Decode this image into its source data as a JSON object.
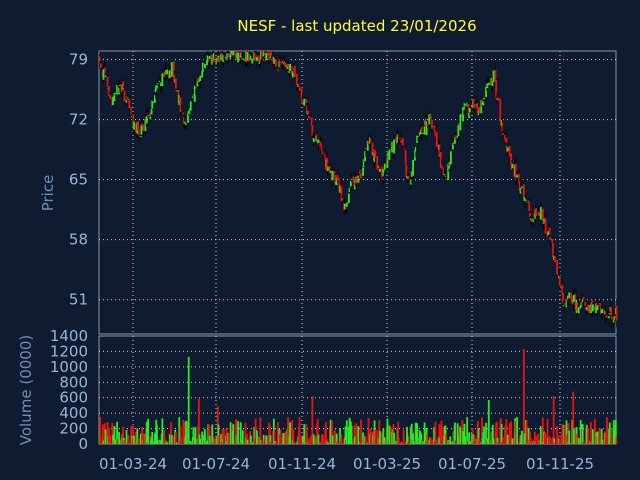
{
  "chart_data": [
    {
      "type": "candlestick",
      "title": "NESF - last updated 23/01/2026",
      "ylabel": "Price",
      "y_ticks": [
        79,
        72,
        65,
        58,
        51
      ],
      "ylim": [
        47,
        80
      ],
      "x_ticks": [
        "01-03-24",
        "01-07-24",
        "01-11-24",
        "01-03-25",
        "01-07-25",
        "01-11-25"
      ],
      "x_range": [
        "2023-12-20",
        "2026-01-23"
      ],
      "grid": true,
      "colors": {
        "up": "#22ee22",
        "down": "#ee1111",
        "wick": "#000000"
      },
      "close_path": [
        [
          "2023-12-20",
          79.0
        ],
        [
          "2024-01-01",
          76.0
        ],
        [
          "2024-01-06",
          73.8
        ],
        [
          "2024-01-12",
          75.2
        ],
        [
          "2024-01-20",
          76.0
        ],
        [
          "2024-01-28",
          74.5
        ],
        [
          "2024-02-05",
          72.5
        ],
        [
          "2024-02-12",
          71.0
        ],
        [
          "2024-02-20",
          70.6
        ],
        [
          "2024-02-28",
          71.8
        ],
        [
          "2024-03-05",
          73.0
        ],
        [
          "2024-03-12",
          75.5
        ],
        [
          "2024-03-20",
          76.5
        ],
        [
          "2024-03-28",
          77.0
        ],
        [
          "2024-04-05",
          78.0
        ],
        [
          "2024-04-12",
          76.0
        ],
        [
          "2024-04-20",
          72.5
        ],
        [
          "2024-04-25",
          71.5
        ],
        [
          "2024-05-02",
          73.5
        ],
        [
          "2024-05-10",
          75.5
        ],
        [
          "2024-05-18",
          78.0
        ],
        [
          "2024-05-26",
          79.0
        ],
        [
          "2024-06-05",
          79.3
        ],
        [
          "2024-06-20",
          79.5
        ],
        [
          "2024-07-05",
          79.5
        ],
        [
          "2024-07-20",
          79.5
        ],
        [
          "2024-08-05",
          79.4
        ],
        [
          "2024-08-20",
          79.3
        ],
        [
          "2024-09-01",
          79.0
        ],
        [
          "2024-09-10",
          78.5
        ],
        [
          "2024-09-18",
          78.0
        ],
        [
          "2024-09-25",
          78.2
        ],
        [
          "2024-10-02",
          77.5
        ],
        [
          "2024-10-10",
          75.5
        ],
        [
          "2024-10-18",
          74.0
        ],
        [
          "2024-10-25",
          72.0
        ],
        [
          "2024-11-02",
          70.0
        ],
        [
          "2024-11-10",
          69.0
        ],
        [
          "2024-11-18",
          67.0
        ],
        [
          "2024-11-25",
          65.5
        ],
        [
          "2024-12-02",
          65.0
        ],
        [
          "2024-12-08",
          64.5
        ],
        [
          "2024-12-15",
          61.5
        ],
        [
          "2024-12-22",
          63.0
        ],
        [
          "2024-12-29",
          65.0
        ],
        [
          "2025-01-05",
          64.8
        ],
        [
          "2025-01-12",
          66.0
        ],
        [
          "2025-01-20",
          70.0
        ],
        [
          "2025-01-27",
          68.5
        ],
        [
          "2025-02-03",
          66.0
        ],
        [
          "2025-02-10",
          65.5
        ],
        [
          "2025-02-17",
          67.0
        ],
        [
          "2025-02-24",
          68.5
        ],
        [
          "2025-03-03",
          69.5
        ],
        [
          "2025-03-10",
          70.0
        ],
        [
          "2025-03-17",
          66.0
        ],
        [
          "2025-03-24",
          64.5
        ],
        [
          "2025-03-31",
          68.5
        ],
        [
          "2025-04-07",
          70.5
        ],
        [
          "2025-04-14",
          71.0
        ],
        [
          "2025-04-21",
          72.0
        ],
        [
          "2025-04-28",
          71.0
        ],
        [
          "2025-05-05",
          68.5
        ],
        [
          "2025-05-10",
          66.0
        ],
        [
          "2025-05-16",
          65.0
        ],
        [
          "2025-05-23",
          68.0
        ],
        [
          "2025-05-30",
          70.0
        ],
        [
          "2025-06-06",
          72.0
        ],
        [
          "2025-06-13",
          73.5
        ],
        [
          "2025-06-20",
          73.0
        ],
        [
          "2025-06-27",
          74.0
        ],
        [
          "2025-07-04",
          73.0
        ],
        [
          "2025-07-11",
          75.0
        ],
        [
          "2025-07-18",
          76.5
        ],
        [
          "2025-07-25",
          77.0
        ],
        [
          "2025-08-01",
          74.0
        ],
        [
          "2025-08-08",
          70.0
        ],
        [
          "2025-08-15",
          68.0
        ],
        [
          "2025-08-22",
          66.5
        ],
        [
          "2025-08-29",
          65.5
        ],
        [
          "2025-09-05",
          63.5
        ],
        [
          "2025-09-12",
          63.0
        ],
        [
          "2025-09-19",
          60.5
        ],
        [
          "2025-09-26",
          61.0
        ],
        [
          "2025-10-03",
          61.5
        ],
        [
          "2025-10-10",
          59.5
        ],
        [
          "2025-10-17",
          58.0
        ],
        [
          "2025-10-24",
          55.5
        ],
        [
          "2025-10-31",
          53.0
        ],
        [
          "2025-11-07",
          50.5
        ],
        [
          "2025-11-14",
          51.5
        ],
        [
          "2025-11-21",
          51.0
        ],
        [
          "2025-11-28",
          50.0
        ],
        [
          "2025-12-05",
          50.5
        ],
        [
          "2025-12-12",
          50.3
        ],
        [
          "2025-12-19",
          50.0
        ],
        [
          "2026-01-02",
          49.8
        ],
        [
          "2026-01-12",
          49.5
        ],
        [
          "2026-01-23",
          49.2
        ]
      ]
    },
    {
      "type": "bar",
      "ylabel": "Volume (0000)",
      "y_ticks": [
        0,
        200,
        400,
        600,
        800,
        1000,
        1200,
        1400
      ],
      "ylim": [
        0,
        1400
      ],
      "x_ticks": [
        "01-03-24",
        "01-07-24",
        "01-11-24",
        "01-03-25",
        "01-07-25",
        "01-11-25"
      ],
      "typical_volume_range": [
        20,
        350
      ],
      "grid": true,
      "spikes": [
        [
          "2024-04-30",
          1130
        ],
        [
          "2024-05-15",
          590
        ],
        [
          "2024-06-12",
          490
        ],
        [
          "2024-06-30",
          530
        ],
        [
          "2024-10-30",
          620
        ],
        [
          "2025-02-22",
          520
        ],
        [
          "2025-04-20",
          530
        ],
        [
          "2025-07-18",
          570
        ],
        [
          "2025-09-08",
          1230
        ],
        [
          "2025-10-22",
          620
        ],
        [
          "2025-11-20",
          680
        ]
      ]
    }
  ]
}
